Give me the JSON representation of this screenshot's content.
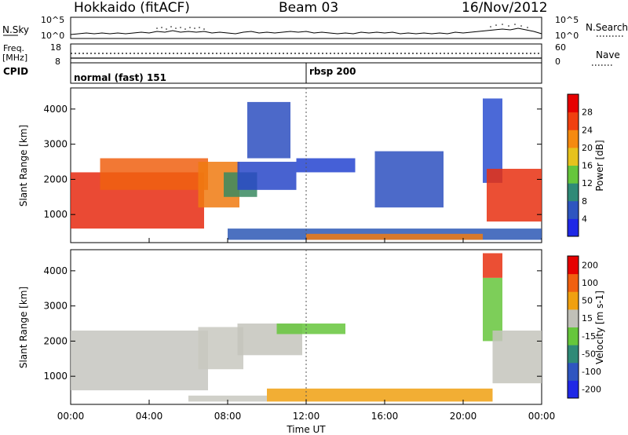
{
  "header": {
    "station": "Hokkaido (fitACF)",
    "beam": "Beam 03",
    "date": "16/Nov/2012"
  },
  "top_panels": {
    "nsky_label": "N.Sky",
    "nsky_ticks": [
      "10^5",
      "10^0"
    ],
    "nsearch_label": "N.Search",
    "nsearch_ticks": [
      "10^5",
      "10^0"
    ],
    "freq_label": "Freq.",
    "freq_unit": "[MHz]",
    "freq_ticks": [
      "18",
      "8"
    ],
    "nave_label": "Nave",
    "nave_ticks": [
      "60",
      "0"
    ],
    "cpid_label": "CPID",
    "cpid_segments": [
      {
        "name": "normal (fast) 151",
        "start_hour": 0,
        "end_hour": 12.0
      },
      {
        "name": "rbsp 200",
        "start_hour": 12.0,
        "end_hour": 24
      }
    ]
  },
  "chart_data": [
    {
      "type": "heatmap",
      "name": "power-panel",
      "ylabel": "Slant Range [km]",
      "xlabel": "Time UT",
      "xlim": [
        0,
        24
      ],
      "ylim": [
        200,
        4600
      ],
      "yticks": [
        "1000",
        "2000",
        "3000",
        "4000"
      ],
      "xticks": [
        "00:00",
        "04:00",
        "08:00",
        "12:00",
        "16:00",
        "20:00",
        "00:00"
      ],
      "colorbar": {
        "label": "Power [dB]",
        "ticks": [
          "4",
          "8",
          "12",
          "16",
          "20",
          "24",
          "28"
        ],
        "colors": [
          "#1f28e6",
          "#2e55c0",
          "#2f8a77",
          "#66c63c",
          "#e7c21d",
          "#f58a10",
          "#f04010",
          "#e60000"
        ]
      },
      "regions": [
        {
          "t0": 0.0,
          "t1": 6.8,
          "r0": 600,
          "r1": 2200,
          "color": "#e62a10"
        },
        {
          "t0": 1.5,
          "t1": 7.0,
          "r0": 1700,
          "r1": 2600,
          "color": "#f06010"
        },
        {
          "t0": 6.5,
          "t1": 8.6,
          "r0": 1200,
          "r1": 2500,
          "color": "#f07a10"
        },
        {
          "t0": 7.8,
          "t1": 9.5,
          "r0": 1500,
          "r1": 2200,
          "color": "#3a8a60"
        },
        {
          "t0": 8.5,
          "t1": 11.5,
          "r0": 1700,
          "r1": 2500,
          "color": "#2846c8"
        },
        {
          "t0": 9.0,
          "t1": 11.2,
          "r0": 2600,
          "r1": 4200,
          "color": "#2d4fc0"
        },
        {
          "t0": 11.5,
          "t1": 14.5,
          "r0": 2200,
          "r1": 2600,
          "color": "#2444d0"
        },
        {
          "t0": 15.5,
          "t1": 19.0,
          "r0": 1200,
          "r1": 2800,
          "color": "#2d50c0"
        },
        {
          "t0": 21.0,
          "t1": 22.0,
          "r0": 1900,
          "r1": 4300,
          "color": "#2b4fd0"
        },
        {
          "t0": 21.2,
          "t1": 24.0,
          "r0": 800,
          "r1": 2300,
          "color": "#e83010"
        },
        {
          "t0": 8.0,
          "t1": 24.0,
          "r0": 280,
          "r1": 600,
          "color": "#2d58b5"
        },
        {
          "t0": 12.0,
          "t1": 21.0,
          "r0": 280,
          "r1": 450,
          "color": "#f07a10"
        }
      ]
    },
    {
      "type": "heatmap",
      "name": "velocity-panel",
      "ylabel": "Slant Range [km]",
      "xlabel": "Time UT",
      "xlim": [
        0,
        24
      ],
      "ylim": [
        200,
        4600
      ],
      "yticks": [
        "1000",
        "2000",
        "3000",
        "4000"
      ],
      "xticks": [
        "00:00",
        "04:00",
        "08:00",
        "12:00",
        "16:00",
        "20:00",
        "00:00"
      ],
      "colorbar": {
        "label": "Velocity [m s-1]",
        "ticks": [
          "200",
          "100",
          "50",
          "15",
          "-15",
          "-50",
          "-100",
          "-200"
        ],
        "colors": [
          "#1f28e6",
          "#2e55c0",
          "#2f8a77",
          "#66c63c",
          "#c0c0b8",
          "#f0a010",
          "#f06010",
          "#e60000"
        ]
      },
      "regions": [
        {
          "t0": 0.0,
          "t1": 7.0,
          "r0": 600,
          "r1": 2300,
          "color": "#c6c6c0"
        },
        {
          "t0": 6.5,
          "t1": 8.8,
          "r0": 1200,
          "r1": 2400,
          "color": "#c8c8c0"
        },
        {
          "t0": 8.5,
          "t1": 11.8,
          "r0": 1600,
          "r1": 2500,
          "color": "#c4c4bc"
        },
        {
          "t0": 10.5,
          "t1": 14.0,
          "r0": 2200,
          "r1": 2500,
          "color": "#66c63c"
        },
        {
          "t0": 21.0,
          "t1": 22.0,
          "r0": 2000,
          "r1": 3800,
          "color": "#66c63c"
        },
        {
          "t0": 21.5,
          "t1": 24.0,
          "r0": 800,
          "r1": 2300,
          "color": "#c4c4bc"
        },
        {
          "t0": 21.0,
          "t1": 22.0,
          "r0": 3800,
          "r1": 4500,
          "color": "#e83010"
        },
        {
          "t0": 10.0,
          "t1": 21.5,
          "r0": 280,
          "r1": 650,
          "color": "#f0a010"
        },
        {
          "t0": 6.0,
          "t1": 10.0,
          "r0": 280,
          "r1": 450,
          "color": "#c8c8c0"
        }
      ]
    }
  ]
}
